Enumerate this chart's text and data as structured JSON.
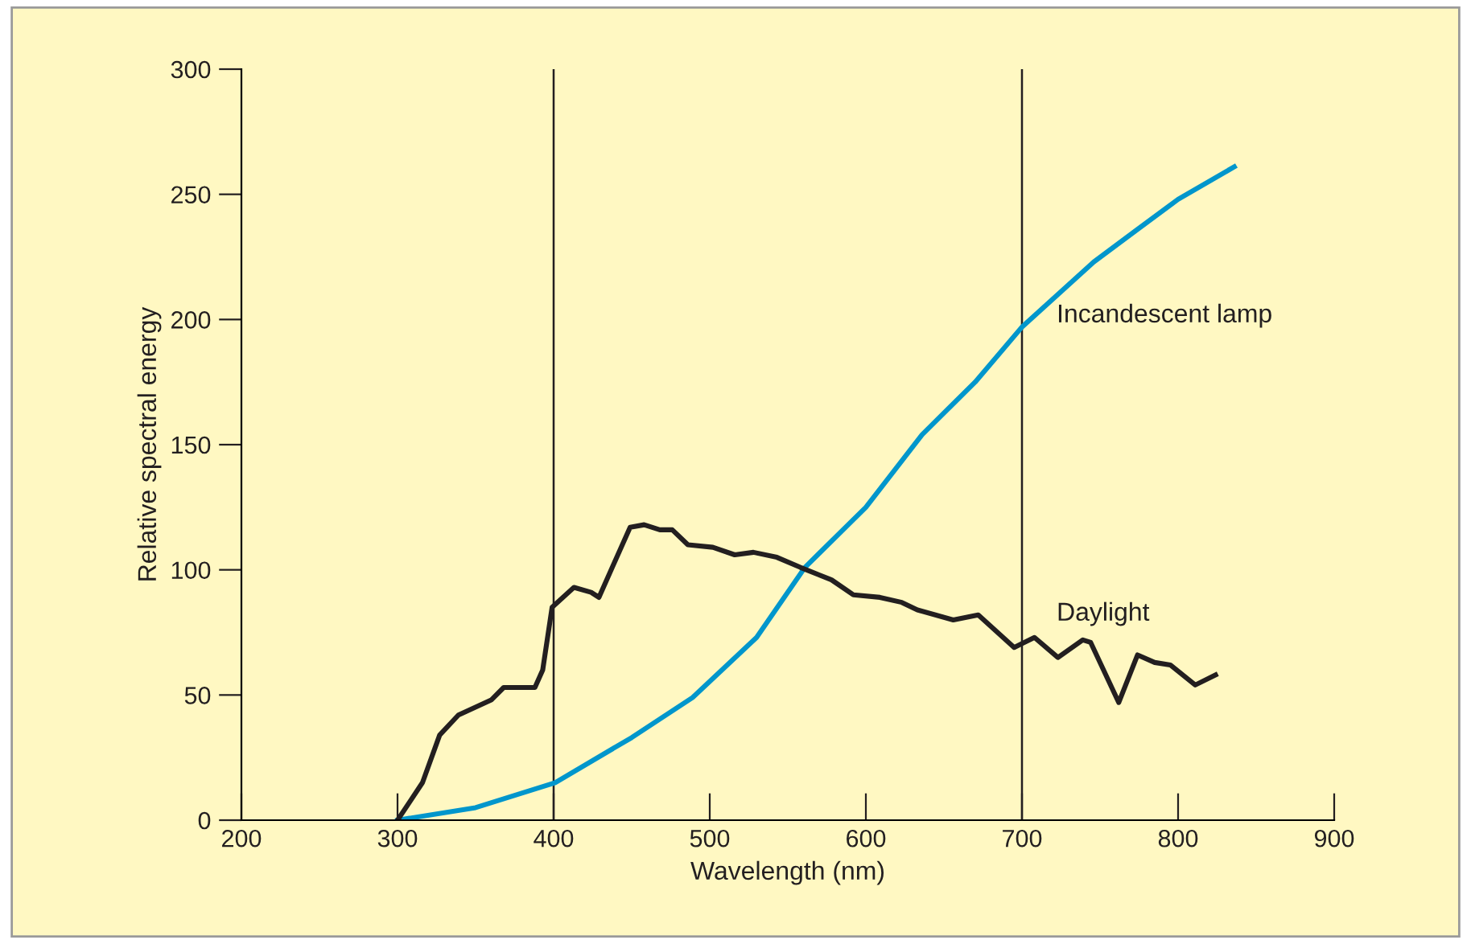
{
  "chart_data": {
    "type": "line",
    "xlabel": "Wavelength (nm)",
    "ylabel": "Relative spectral energy",
    "xlim": [
      200,
      900
    ],
    "xticks": [
      200,
      300,
      400,
      500,
      600,
      700,
      800,
      900
    ],
    "ylim": [
      0,
      300
    ],
    "yticks": [
      0,
      50,
      100,
      150,
      200,
      250,
      300
    ],
    "grid": false,
    "legend": false,
    "marker": "none",
    "line_style": "solid",
    "series": [
      {
        "name": "Incandescent lamp",
        "color": "#0096cc",
        "x": [
          300,
          350,
          401,
          450,
          489,
          530,
          561,
          600,
          636,
          670,
          700,
          746,
          774,
          800,
          836
        ],
        "values": [
          0,
          5,
          15,
          33,
          49,
          73,
          101,
          125,
          154,
          175,
          197,
          223,
          236,
          248,
          261
        ]
      },
      {
        "name": "Daylight",
        "color": "#231f20",
        "x": [
          300,
          316,
          327,
          339,
          360,
          368,
          388,
          393,
          399,
          413,
          424,
          429,
          449,
          458,
          468,
          476,
          486,
          502,
          516,
          528,
          543,
          558,
          578,
          592,
          609,
          623,
          633,
          656,
          672,
          695,
          708,
          723,
          739,
          744,
          762,
          774,
          785,
          795,
          811,
          824
        ],
        "values": [
          0,
          15,
          34,
          42,
          48,
          53,
          53,
          60,
          85,
          93,
          91,
          89,
          117,
          118,
          116,
          116,
          110,
          109,
          106,
          107,
          105,
          101,
          96,
          90,
          89,
          87,
          84,
          80,
          82,
          69,
          73,
          65,
          72,
          71,
          47,
          66,
          63,
          62,
          54,
          58
        ]
      }
    ],
    "ref_lines": [
      {
        "axis": "x",
        "value": 400,
        "color": "#231f20"
      },
      {
        "axis": "x",
        "value": 700,
        "color": "#231f20"
      }
    ]
  }
}
